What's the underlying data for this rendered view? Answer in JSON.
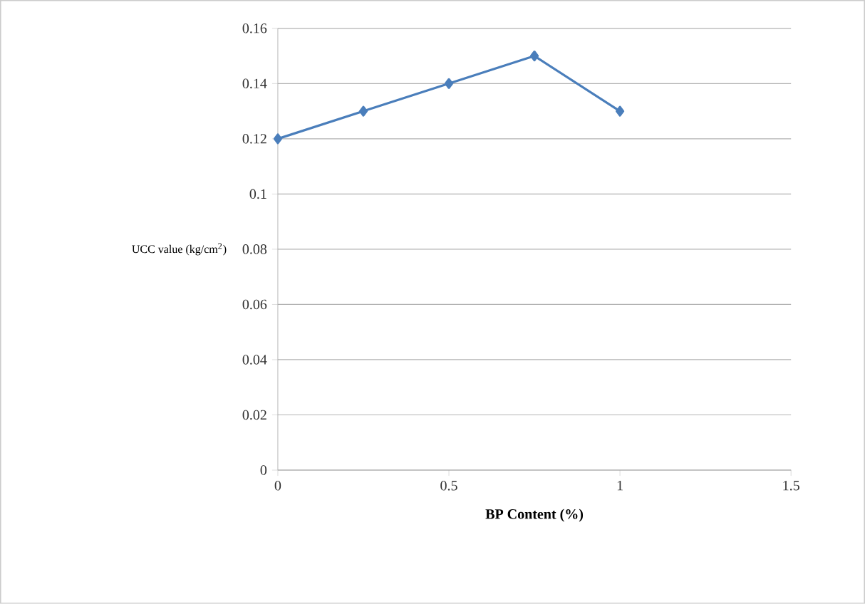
{
  "chart_data": {
    "type": "line",
    "xlabel": "BP Content (%)",
    "ylabel": "UCC value (kg/cm$^{2}$)",
    "x": [
      0,
      0.25,
      0.5,
      0.75,
      1
    ],
    "series": [
      {
        "color": "#4a7ebb",
        "values": [
          0.12,
          0.13,
          0.14,
          0.15,
          0.13
        ]
      }
    ],
    "xlim": [
      0,
      1.5
    ],
    "xticks": [
      0,
      0.5,
      1,
      1.5
    ],
    "ylim": [
      0,
      0.16
    ],
    "yticks": [
      0,
      0.02,
      0.04,
      0.06,
      0.08,
      0.1,
      0.12,
      0.14,
      0.16
    ],
    "grid": "y",
    "marker": "diamond",
    "line_style": "solid"
  }
}
